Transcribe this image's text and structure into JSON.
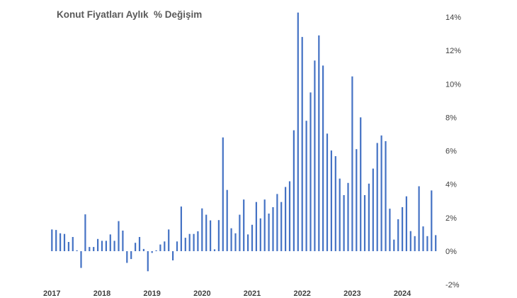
{
  "chart_data": {
    "type": "bar",
    "title": "Konut Fiyatları Aylık  % Değişim",
    "xlabel": "",
    "ylabel": "",
    "y_axis_position": "right",
    "ylim": [
      -2,
      14
    ],
    "y_ticks": [
      -2,
      0,
      2,
      4,
      6,
      8,
      10,
      12,
      14
    ],
    "y_tick_labels": [
      "-2%",
      "0%",
      "2%",
      "4%",
      "6%",
      "8%",
      "10%",
      "12%",
      "14%"
    ],
    "x_tick_labels": [
      "2017",
      "2018",
      "2019",
      "2020",
      "2021",
      "2022",
      "2023",
      "2024"
    ],
    "grid": false,
    "legend": "none",
    "bar_color": "#4472C4",
    "series": [
      {
        "values": [
          1.3,
          1.27,
          1.07,
          1.03,
          0.55,
          0.85,
          0.05,
          -1.0,
          2.2,
          0.25,
          0.25,
          0.73,
          0.62,
          0.62,
          1.0,
          0.62,
          1.8,
          1.23,
          -0.7,
          -0.47,
          0.5,
          0.85,
          0.13,
          -1.2,
          -0.1,
          0.05,
          0.4,
          0.58,
          1.3,
          -0.55,
          0.58,
          2.67,
          0.8,
          1.03,
          1.03,
          1.19,
          2.56,
          2.18,
          1.84,
          0.11,
          1.86,
          6.8,
          3.66,
          1.37,
          1.07,
          2.18,
          3.09,
          1.0,
          1.58,
          2.94,
          1.96,
          3.09,
          2.25,
          2.63,
          3.42,
          2.94,
          3.84,
          4.18,
          7.23,
          14.27,
          12.81,
          7.8,
          9.49,
          11.4,
          12.9,
          11.1,
          7.03,
          6.02,
          5.68,
          4.34,
          3.35,
          4.08,
          10.45,
          6.1,
          8.0,
          3.35,
          4.04,
          4.94,
          6.47,
          6.92,
          6.58,
          2.54,
          0.69,
          1.91,
          2.63,
          3.28,
          1.2,
          0.9,
          3.88,
          1.48,
          0.9,
          3.63,
          0.96
        ]
      }
    ]
  }
}
